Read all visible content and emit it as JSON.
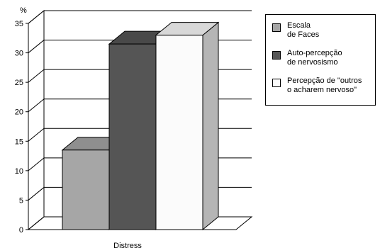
{
  "chart_data": {
    "type": "bar",
    "unit_label": "%",
    "categories": [
      "Distress"
    ],
    "ylim": [
      0,
      35
    ],
    "yticks": [
      0,
      5,
      10,
      15,
      20,
      25,
      30,
      35
    ],
    "grid": true,
    "legend_position": "right",
    "series": [
      {
        "name": "Escala\nde Faces",
        "values": [
          13.5
        ],
        "color": "#a6a6a6"
      },
      {
        "name": "Auto-percepção\nde nervosismo",
        "values": [
          31.5
        ],
        "color": "#555555"
      },
      {
        "name": "Percepção de \"outros\no acharem nervoso\"",
        "values": [
          33
        ],
        "color": "#fbfbfb"
      }
    ]
  }
}
